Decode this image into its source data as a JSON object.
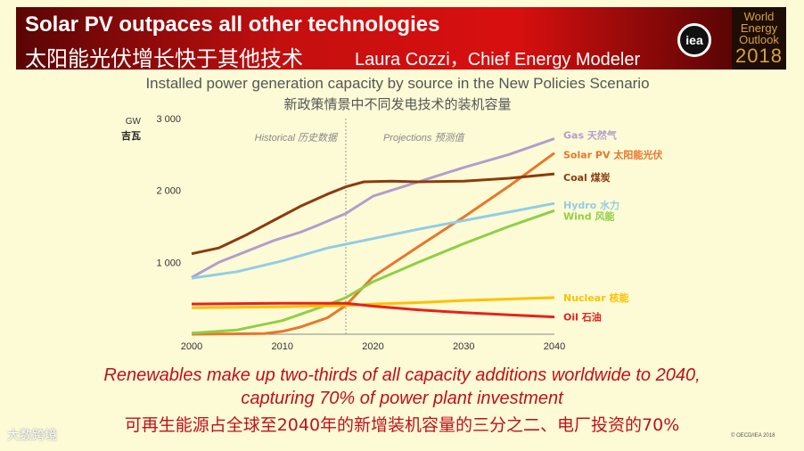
{
  "banner": {
    "title": "Solar PV outpaces all other technologies",
    "subtitle_cn": "太阳能光伏增长快于其他技术",
    "speaker": "Laura Cozzi，Chief Energy Modeler",
    "logo_text": "iea",
    "weo_lines": [
      "World",
      "Energy",
      "Outlook",
      "2018"
    ]
  },
  "chart_data": {
    "type": "line",
    "title": "Installed power generation capacity by source in the New Policies Scenario",
    "subtitle": "新政策情景中不同发电技术的装机容量",
    "ylabel": "GW",
    "ylabel_cn": "吉瓦",
    "xlim": [
      2000,
      2040
    ],
    "ylim": [
      0,
      3000
    ],
    "x_ticks": [
      "2000",
      "2010",
      "2020",
      "2030",
      "2040"
    ],
    "y_ticks": [
      "1 000",
      "2 000",
      "3 000"
    ],
    "grid": false,
    "divider_year": 2017,
    "historical_label": "Historical 历史数据",
    "projections_label": "Projections 预测值",
    "series": [
      {
        "name": "Gas",
        "name_cn": "天然气",
        "color": "#b49dcd",
        "x": [
          2000,
          2003,
          2006,
          2009,
          2012,
          2014,
          2017,
          2020,
          2025,
          2030,
          2035,
          2040
        ],
        "values": [
          790,
          1000,
          1150,
          1300,
          1420,
          1520,
          1680,
          1920,
          2120,
          2320,
          2500,
          2720
        ]
      },
      {
        "name": "Solar PV",
        "name_cn": "太阳能光伏",
        "color": "#e9762b",
        "x": [
          2000,
          2008,
          2010,
          2012,
          2015,
          2017,
          2020,
          2025,
          2030,
          2035,
          2040
        ],
        "values": [
          0,
          10,
          40,
          100,
          230,
          400,
          800,
          1220,
          1630,
          2060,
          2520
        ]
      },
      {
        "name": "Coal",
        "name_cn": "煤炭",
        "color": "#8b3b0f",
        "x": [
          2000,
          2003,
          2006,
          2009,
          2012,
          2015,
          2017,
          2019,
          2022,
          2025,
          2030,
          2035,
          2040
        ],
        "values": [
          1120,
          1200,
          1380,
          1580,
          1780,
          1950,
          2050,
          2120,
          2130,
          2120,
          2130,
          2170,
          2230
        ]
      },
      {
        "name": "Hydro",
        "name_cn": "水力",
        "color": "#92cde4",
        "x": [
          2000,
          2005,
          2010,
          2015,
          2020,
          2025,
          2030,
          2035,
          2040
        ],
        "values": [
          780,
          870,
          1020,
          1200,
          1330,
          1460,
          1580,
          1700,
          1820
        ]
      },
      {
        "name": "Wind",
        "name_cn": "风能",
        "color": "#8fcf45",
        "x": [
          2000,
          2005,
          2010,
          2015,
          2017,
          2020,
          2025,
          2030,
          2035,
          2040
        ],
        "values": [
          15,
          60,
          190,
          410,
          510,
          730,
          1000,
          1260,
          1500,
          1720
        ]
      },
      {
        "name": "Nuclear",
        "name_cn": "核能",
        "color": "#ffc000",
        "x": [
          2000,
          2010,
          2017,
          2020,
          2025,
          2030,
          2035,
          2040
        ],
        "values": [
          370,
          380,
          400,
          420,
          440,
          470,
          490,
          510
        ]
      },
      {
        "name": "Oil",
        "name_cn": "石油",
        "color": "#e8211c",
        "x": [
          2000,
          2010,
          2017,
          2020,
          2025,
          2030,
          2035,
          2040
        ],
        "values": [
          420,
          430,
          430,
          390,
          340,
          300,
          270,
          240
        ]
      }
    ]
  },
  "caption": {
    "line1": "Renewables make up two-thirds of all capacity additions worldwide to 2040,",
    "line2": "capturing 70% of power plant investment",
    "cn": "可再生能源占全球至2040年的新增装机容量的三分之二、电厂投资的70%"
  },
  "footer": {
    "copyright": "© OECD/IEA 2018",
    "watermark": "大数跨境"
  }
}
